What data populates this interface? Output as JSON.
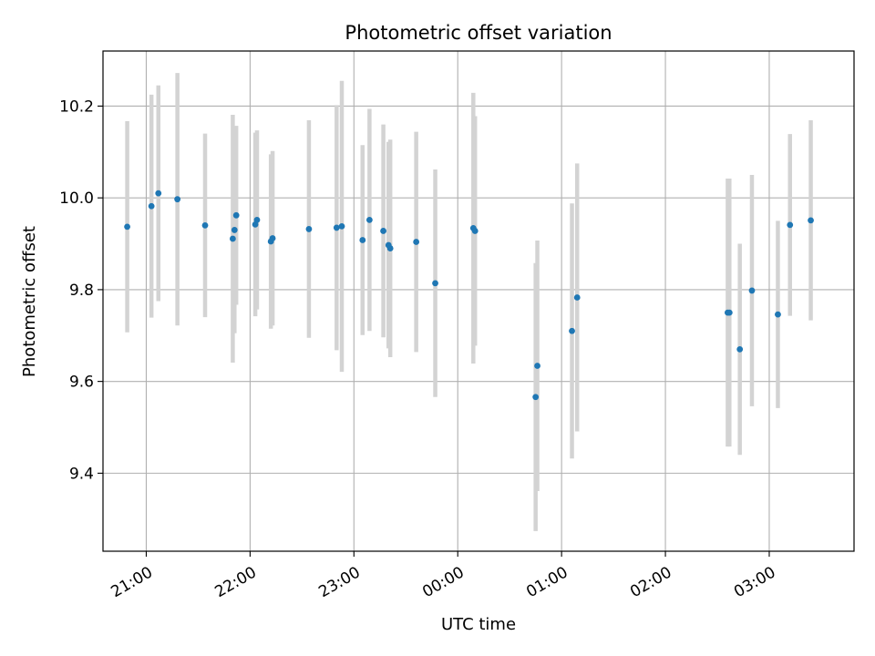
{
  "chart_data": {
    "type": "scatter",
    "title": "Photometric offset variation",
    "xlabel": "UTC time",
    "ylabel": "Photometric offset",
    "x_ticks": [
      "21:00",
      "22:00",
      "23:00",
      "00:00",
      "01:00",
      "02:00",
      "03:00"
    ],
    "y_ticks": [
      "9.4",
      "9.6",
      "9.8",
      "10.0",
      "10.2"
    ],
    "xlim": [
      "20:35",
      "03:49"
    ],
    "ylim": [
      9.23,
      10.32
    ],
    "grid": true,
    "colors": {
      "points": "#1f77b4",
      "errorbars": "#d3d3d3",
      "grid": "#b0b0b0"
    },
    "series": [
      {
        "points": [
          {
            "x": "20:49",
            "y": 9.937,
            "err": 0.23
          },
          {
            "x": "21:03",
            "y": 9.982,
            "err": 0.243
          },
          {
            "x": "21:07",
            "y": 10.01,
            "err": 0.235
          },
          {
            "x": "21:18",
            "y": 9.997,
            "err": 0.275
          },
          {
            "x": "21:34",
            "y": 9.94,
            "err": 0.2
          },
          {
            "x": "21:50",
            "y": 9.911,
            "err": 0.27
          },
          {
            "x": "21:51",
            "y": 9.93,
            "err": 0.225
          },
          {
            "x": "21:52",
            "y": 9.962,
            "err": 0.195
          },
          {
            "x": "22:03",
            "y": 9.942,
            "err": 0.2
          },
          {
            "x": "22:04",
            "y": 9.952,
            "err": 0.195
          },
          {
            "x": "22:12",
            "y": 9.905,
            "err": 0.19
          },
          {
            "x": "22:13",
            "y": 9.912,
            "err": 0.19
          },
          {
            "x": "22:34",
            "y": 9.932,
            "err": 0.237
          },
          {
            "x": "22:50",
            "y": 9.935,
            "err": 0.267
          },
          {
            "x": "22:53",
            "y": 9.938,
            "err": 0.317
          },
          {
            "x": "23:05",
            "y": 9.908,
            "err": 0.207
          },
          {
            "x": "23:09",
            "y": 9.952,
            "err": 0.242
          },
          {
            "x": "23:17",
            "y": 9.928,
            "err": 0.232
          },
          {
            "x": "23:20",
            "y": 9.897,
            "err": 0.225
          },
          {
            "x": "23:21",
            "y": 9.89,
            "err": 0.237
          },
          {
            "x": "23:36",
            "y": 9.904,
            "err": 0.24
          },
          {
            "x": "23:47",
            "y": 9.814,
            "err": 0.248
          },
          {
            "x": "00:09",
            "y": 9.934,
            "err": 0.295
          },
          {
            "x": "00:10",
            "y": 9.928,
            "err": 0.25
          },
          {
            "x": "00:45",
            "y": 9.566,
            "err": 0.292
          },
          {
            "x": "00:46",
            "y": 9.634,
            "err": 0.273
          },
          {
            "x": "01:06",
            "y": 9.71,
            "err": 0.278
          },
          {
            "x": "01:09",
            "y": 9.783,
            "err": 0.292
          },
          {
            "x": "02:36",
            "y": 9.75,
            "err": 0.292
          },
          {
            "x": "02:37",
            "y": 9.75,
            "err": 0.292
          },
          {
            "x": "02:43",
            "y": 9.67,
            "err": 0.23
          },
          {
            "x": "02:50",
            "y": 9.798,
            "err": 0.252
          },
          {
            "x": "03:05",
            "y": 9.746,
            "err": 0.204
          },
          {
            "x": "03:12",
            "y": 9.941,
            "err": 0.198
          },
          {
            "x": "03:24",
            "y": 9.951,
            "err": 0.218
          }
        ]
      }
    ]
  }
}
